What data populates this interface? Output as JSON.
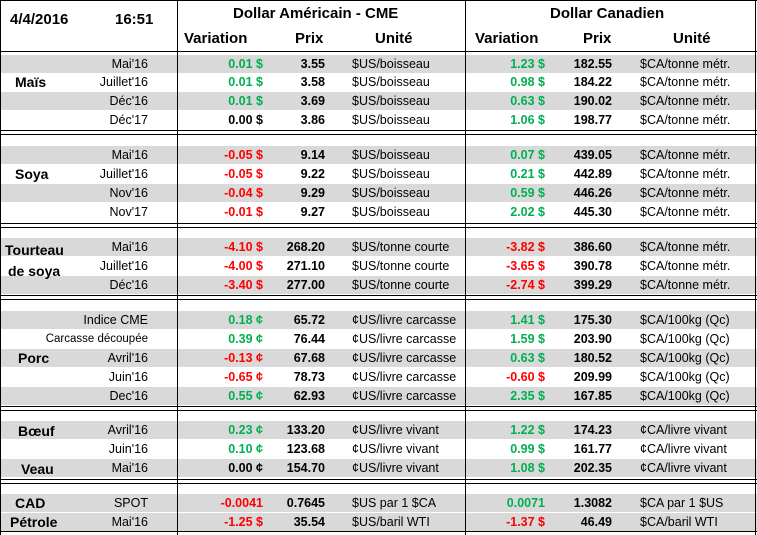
{
  "header": {
    "date": "4/4/2016",
    "time": "16:51",
    "group_us": "Dollar Américain - CME",
    "group_ca": "Dollar Canadien",
    "col_variation": "Variation",
    "col_prix": "Prix",
    "col_unite": "Unité"
  },
  "colors": {
    "positive": "#00b050",
    "negative": "#ff0000",
    "band": "#d9d9d9"
  },
  "categories": [
    {
      "name": "Maïs",
      "rows": [
        0,
        3
      ]
    },
    {
      "name": "Soya",
      "rows": [
        4,
        7
      ]
    },
    {
      "name": "Tourteau de soya",
      "rows": [
        8,
        10
      ]
    },
    {
      "name": "Porc",
      "rows": [
        11,
        15
      ]
    },
    {
      "name": "Bœuf",
      "rows": [
        16,
        16
      ]
    },
    {
      "name": "Veau",
      "rows": [
        18,
        18
      ]
    },
    {
      "name": "CAD",
      "rows": [
        19,
        19
      ]
    },
    {
      "name": "Pétrole",
      "rows": [
        20,
        20
      ]
    }
  ],
  "rows": [
    {
      "contract": "Mai'16",
      "us_var": "0.01 $",
      "us_sign": "pos",
      "us_prix": "3.55",
      "us_unit": "$US/boisseau",
      "ca_var": "1.23 $",
      "ca_sign": "pos",
      "ca_prix": "182.55",
      "ca_unit": "$CA/tonne métr."
    },
    {
      "contract": "Juillet'16",
      "us_var": "0.01 $",
      "us_sign": "pos",
      "us_prix": "3.58",
      "us_unit": "$US/boisseau",
      "ca_var": "0.98 $",
      "ca_sign": "pos",
      "ca_prix": "184.22",
      "ca_unit": "$CA/tonne métr."
    },
    {
      "contract": "Déc'16",
      "us_var": "0.01 $",
      "us_sign": "pos",
      "us_prix": "3.69",
      "us_unit": "$US/boisseau",
      "ca_var": "0.63 $",
      "ca_sign": "pos",
      "ca_prix": "190.02",
      "ca_unit": "$CA/tonne métr."
    },
    {
      "contract": "Déc'17",
      "us_var": "0.00 $",
      "us_sign": "zer",
      "us_prix": "3.86",
      "us_unit": "$US/boisseau",
      "ca_var": "1.06 $",
      "ca_sign": "pos",
      "ca_prix": "198.77",
      "ca_unit": "$CA/tonne métr."
    },
    {
      "contract": "Mai'16",
      "us_var": "-0.05 $",
      "us_sign": "neg",
      "us_prix": "9.14",
      "us_unit": "$US/boisseau",
      "ca_var": "0.07 $",
      "ca_sign": "pos",
      "ca_prix": "439.05",
      "ca_unit": "$CA/tonne métr."
    },
    {
      "contract": "Juillet'16",
      "us_var": "-0.05 $",
      "us_sign": "neg",
      "us_prix": "9.22",
      "us_unit": "$US/boisseau",
      "ca_var": "0.21 $",
      "ca_sign": "pos",
      "ca_prix": "442.89",
      "ca_unit": "$CA/tonne métr."
    },
    {
      "contract": "Nov'16",
      "us_var": "-0.04 $",
      "us_sign": "neg",
      "us_prix": "9.29",
      "us_unit": "$US/boisseau",
      "ca_var": "0.59 $",
      "ca_sign": "pos",
      "ca_prix": "446.26",
      "ca_unit": "$CA/tonne métr."
    },
    {
      "contract": "Nov'17",
      "us_var": "-0.01 $",
      "us_sign": "neg",
      "us_prix": "9.27",
      "us_unit": "$US/boisseau",
      "ca_var": "2.02 $",
      "ca_sign": "pos",
      "ca_prix": "445.30",
      "ca_unit": "$CA/tonne métr."
    },
    {
      "contract": "Mai'16",
      "us_var": "-4.10 $",
      "us_sign": "neg",
      "us_prix": "268.20",
      "us_unit": "$US/tonne courte",
      "ca_var": "-3.82 $",
      "ca_sign": "neg",
      "ca_prix": "386.60",
      "ca_unit": "$CA/tonne métr."
    },
    {
      "contract": "Juillet'16",
      "us_var": "-4.00 $",
      "us_sign": "neg",
      "us_prix": "271.10",
      "us_unit": "$US/tonne courte",
      "ca_var": "-3.65 $",
      "ca_sign": "neg",
      "ca_prix": "390.78",
      "ca_unit": "$CA/tonne métr."
    },
    {
      "contract": "Déc'16",
      "us_var": "-3.40 $",
      "us_sign": "neg",
      "us_prix": "277.00",
      "us_unit": "$US/tonne courte",
      "ca_var": "-2.74 $",
      "ca_sign": "neg",
      "ca_prix": "399.29",
      "ca_unit": "$CA/tonne métr."
    },
    {
      "contract": "Indice CME",
      "us_var": "0.18 ¢",
      "us_sign": "pos",
      "us_prix": "65.72",
      "us_unit": "¢US/livre carcasse",
      "ca_var": "1.41 $",
      "ca_sign": "pos",
      "ca_prix": "175.30",
      "ca_unit": "$CA/100kg (Qc)"
    },
    {
      "contract": "Carcasse découpée",
      "us_var": "0.39 ¢",
      "us_sign": "pos",
      "us_prix": "76.44",
      "us_unit": "¢US/livre carcasse",
      "ca_var": "1.59 $",
      "ca_sign": "pos",
      "ca_prix": "203.90",
      "ca_unit": "$CA/100kg (Qc)"
    },
    {
      "contract": "Avril'16",
      "us_var": "-0.13 ¢",
      "us_sign": "neg",
      "us_prix": "67.68",
      "us_unit": "¢US/livre carcasse",
      "ca_var": "0.63 $",
      "ca_sign": "pos",
      "ca_prix": "180.52",
      "ca_unit": "$CA/100kg (Qc)"
    },
    {
      "contract": "Juin'16",
      "us_var": "-0.65 ¢",
      "us_sign": "neg",
      "us_prix": "78.73",
      "us_unit": "¢US/livre carcasse",
      "ca_var": "-0.60 $",
      "ca_sign": "neg",
      "ca_prix": "209.99",
      "ca_unit": "$CA/100kg (Qc)"
    },
    {
      "contract": "Dec'16",
      "us_var": "0.55 ¢",
      "us_sign": "pos",
      "us_prix": "62.93",
      "us_unit": "¢US/livre carcasse",
      "ca_var": "2.35 $",
      "ca_sign": "pos",
      "ca_prix": "167.85",
      "ca_unit": "$CA/100kg (Qc)"
    },
    {
      "contract": "Avril'16",
      "us_var": "0.23 ¢",
      "us_sign": "pos",
      "us_prix": "133.20",
      "us_unit": "¢US/livre vivant",
      "ca_var": "1.22 $",
      "ca_sign": "pos",
      "ca_prix": "174.23",
      "ca_unit": "¢CA/livre vivant"
    },
    {
      "contract": "Juin'16",
      "us_var": "0.10 ¢",
      "us_sign": "pos",
      "us_prix": "123.68",
      "us_unit": "¢US/livre vivant",
      "ca_var": "0.99 $",
      "ca_sign": "pos",
      "ca_prix": "161.77",
      "ca_unit": "¢CA/livre vivant"
    },
    {
      "contract": "Mai'16",
      "us_var": "0.00 ¢",
      "us_sign": "zer",
      "us_prix": "154.70",
      "us_unit": "¢US/livre vivant",
      "ca_var": "1.08 $",
      "ca_sign": "pos",
      "ca_prix": "202.35",
      "ca_unit": "¢CA/livre vivant"
    },
    {
      "contract": "SPOT",
      "us_var": "-0.0041",
      "us_sign": "neg",
      "us_prix": "0.7645",
      "us_unit": "$US par 1 $CA",
      "ca_var": "0.0071",
      "ca_sign": "pos",
      "ca_prix": "1.3082",
      "ca_unit": "$CA par 1 $US"
    },
    {
      "contract": "Mai'16",
      "us_var": "-1.25 $",
      "us_sign": "neg",
      "us_prix": "35.54",
      "us_unit": "$US/baril WTI",
      "ca_var": "-1.37 $",
      "ca_sign": "neg",
      "ca_prix": "46.49",
      "ca_unit": "$CA/baril WTI"
    }
  ]
}
